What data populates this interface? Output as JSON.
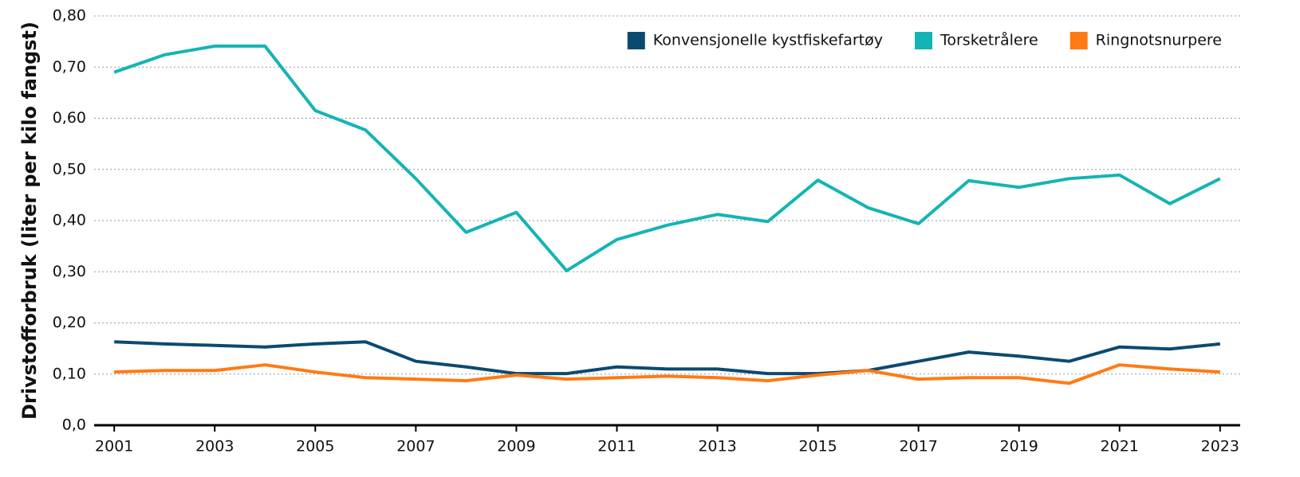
{
  "chart_data": {
    "type": "line",
    "ylabel": "Drivstofforbruk (liter per kilo fangst)",
    "x": [
      2001,
      2002,
      2003,
      2004,
      2005,
      2006,
      2007,
      2008,
      2009,
      2010,
      2011,
      2012,
      2013,
      2014,
      2015,
      2016,
      2017,
      2018,
      2019,
      2020,
      2021,
      2022,
      2023
    ],
    "series": [
      {
        "name": "Konvensjonelle kystfiskefartøy",
        "color": "#0b4a70",
        "values": [
          0.163,
          0.159,
          0.156,
          0.153,
          0.159,
          0.163,
          0.125,
          0.114,
          0.101,
          0.101,
          0.114,
          0.11,
          0.11,
          0.101,
          0.101,
          0.107,
          0.125,
          0.143,
          0.135,
          0.125,
          0.153,
          0.149,
          0.159
        ]
      },
      {
        "name": "Torsketrålere",
        "color": "#14b4b4",
        "values": [
          0.69,
          0.724,
          0.741,
          0.741,
          0.615,
          0.577,
          0.482,
          0.377,
          0.416,
          0.302,
          0.363,
          0.391,
          0.412,
          0.398,
          0.479,
          0.425,
          0.394,
          0.478,
          0.465,
          0.482,
          0.489,
          0.433,
          0.482
        ]
      },
      {
        "name": "Ringnotsnurpere",
        "color": "#ff7a14",
        "values": [
          0.104,
          0.107,
          0.107,
          0.118,
          0.104,
          0.093,
          0.09,
          0.087,
          0.098,
          0.09,
          0.093,
          0.096,
          0.093,
          0.087,
          0.098,
          0.107,
          0.09,
          0.093,
          0.093,
          0.082,
          0.118,
          0.11,
          0.104
        ]
      }
    ],
    "xlim": [
      2000.6,
      2023.4
    ],
    "xticks": [
      2001,
      2003,
      2005,
      2007,
      2009,
      2011,
      2013,
      2015,
      2017,
      2019,
      2021,
      2023
    ],
    "ylim": [
      0,
      0.8
    ],
    "yticks": [
      {
        "value": 0,
        "label": "0,0"
      },
      {
        "value": 0.1,
        "label": "0,10"
      },
      {
        "value": 0.2,
        "label": "0,20"
      },
      {
        "value": 0.3,
        "label": "0,30"
      },
      {
        "value": 0.4,
        "label": "0,40"
      },
      {
        "value": 0.5,
        "label": "0,50"
      },
      {
        "value": 0.6,
        "label": "0,60"
      },
      {
        "value": 0.7,
        "label": "0,70"
      },
      {
        "value": 0.8,
        "label": "0,80"
      }
    ],
    "grid": true,
    "legend": "upper right"
  }
}
